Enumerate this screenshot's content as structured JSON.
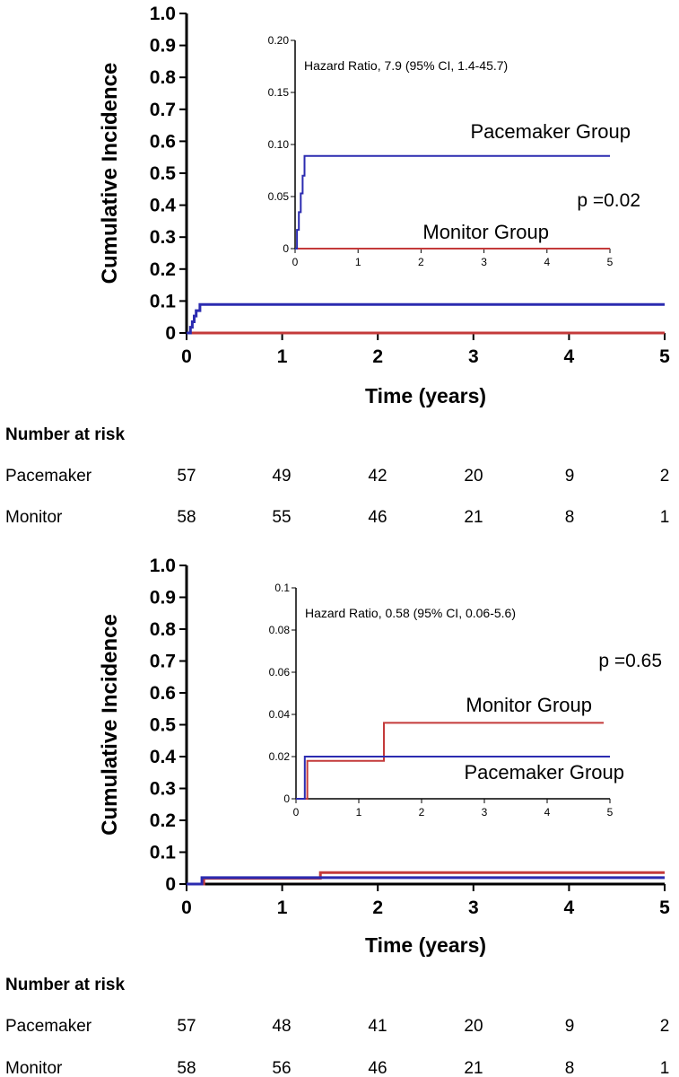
{
  "chart_data": [
    {
      "type": "line",
      "ylabel": "Cumulative Incidence",
      "xlabel": "Time (years)",
      "xlim": [
        0,
        5
      ],
      "ylim": [
        0,
        1
      ],
      "x_ticks": [
        "0",
        "1",
        "2",
        "3",
        "4",
        "5"
      ],
      "y_ticks": [
        "0",
        "0.1",
        "0.2",
        "0.3",
        "0.4",
        "0.5",
        "0.6",
        "0.7",
        "0.8",
        "0.9",
        "1.0"
      ],
      "series": [
        {
          "name": "Pacemaker Group",
          "color": "#2b2bb0",
          "steps": [
            [
              0,
              0
            ],
            [
              0.04,
              0.018
            ],
            [
              0.06,
              0.035
            ],
            [
              0.08,
              0.053
            ],
            [
              0.1,
              0.07
            ],
            [
              0.14,
              0.089
            ],
            [
              5,
              0.089
            ]
          ]
        },
        {
          "name": "Monitor Group",
          "color": "#c43a3a",
          "steps": [
            [
              0,
              0
            ],
            [
              5,
              0
            ]
          ]
        }
      ],
      "inset": {
        "xlim": [
          0,
          5
        ],
        "ylim": [
          0,
          0.2
        ],
        "x_ticks": [
          "0",
          "1",
          "2",
          "3",
          "4",
          "5"
        ],
        "y_ticks": [
          "0",
          "0.05",
          "0.10",
          "0.15",
          "0.20"
        ],
        "annotation": "Hazard Ratio, 7.9 (95% CI, 1.4-45.7)",
        "p_value": "p =0.02",
        "labels": {
          "upper": "Pacemaker Group",
          "lower": "Monitor Group"
        },
        "series": [
          {
            "name": "Pacemaker Group",
            "color": "#2b2bb0",
            "steps": [
              [
                0,
                0
              ],
              [
                0.03,
                0.018
              ],
              [
                0.06,
                0.035
              ],
              [
                0.09,
                0.053
              ],
              [
                0.12,
                0.07
              ],
              [
                0.15,
                0.089
              ],
              [
                5,
                0.089
              ]
            ]
          },
          {
            "name": "Monitor Group",
            "color": "#c43a3a",
            "steps": [
              [
                0,
                0
              ],
              [
                5,
                0
              ]
            ]
          }
        ]
      },
      "risk_table": {
        "title": "Number at risk",
        "rows": [
          {
            "label": "Pacemaker",
            "values": [
              "57",
              "49",
              "42",
              "20",
              "9",
              "2"
            ]
          },
          {
            "label": "Monitor",
            "values": [
              "58",
              "55",
              "46",
              "21",
              "8",
              "1"
            ]
          }
        ]
      }
    },
    {
      "type": "line",
      "ylabel": "Cumulative Incidence",
      "xlabel": "Time (years)",
      "xlim": [
        0,
        5
      ],
      "ylim": [
        0,
        1
      ],
      "x_ticks": [
        "0",
        "1",
        "2",
        "3",
        "4",
        "5"
      ],
      "y_ticks": [
        "0",
        "0.1",
        "0.2",
        "0.3",
        "0.4",
        "0.5",
        "0.6",
        "0.7",
        "0.8",
        "0.9",
        "1.0"
      ],
      "series": [
        {
          "name": "Pacemaker Group",
          "color": "#2b2bb0",
          "steps": [
            [
              0,
              0
            ],
            [
              0.16,
              0.02
            ],
            [
              5,
              0.02
            ]
          ]
        },
        {
          "name": "Monitor Group",
          "color": "#c43a3a",
          "steps": [
            [
              0,
              0
            ],
            [
              0.18,
              0.018
            ],
            [
              1.4,
              0.036
            ],
            [
              5,
              0.036
            ]
          ]
        }
      ],
      "inset": {
        "xlim": [
          0,
          5
        ],
        "ylim": [
          0,
          0.1
        ],
        "x_ticks": [
          "0",
          "1",
          "2",
          "3",
          "4",
          "5"
        ],
        "y_ticks": [
          "0",
          "0.02",
          "0.04",
          "0.06",
          "0.08",
          "0.1"
        ],
        "annotation": "Hazard Ratio, 0.58 (95% CI, 0.06-5.6)",
        "p_value": "p =0.65",
        "labels": {
          "upper": "Monitor Group",
          "lower": "Pacemaker Group"
        },
        "series": [
          {
            "name": "Pacemaker Group",
            "color": "#2b2bb0",
            "steps": [
              [
                0,
                0
              ],
              [
                0.14,
                0.02
              ],
              [
                5,
                0.02
              ]
            ]
          },
          {
            "name": "Monitor Group",
            "color": "#c43a3a",
            "steps": [
              [
                0,
                0
              ],
              [
                0.18,
                0.018
              ],
              [
                1.4,
                0.036
              ],
              [
                4.9,
                0.036
              ]
            ]
          }
        ]
      },
      "risk_table": {
        "title": "Number at risk",
        "rows": [
          {
            "label": "Pacemaker",
            "values": [
              "57",
              "48",
              "41",
              "20",
              "9",
              "2"
            ]
          },
          {
            "label": "Monitor",
            "values": [
              "58",
              "56",
              "46",
              "21",
              "8",
              "1"
            ]
          }
        ]
      }
    }
  ]
}
